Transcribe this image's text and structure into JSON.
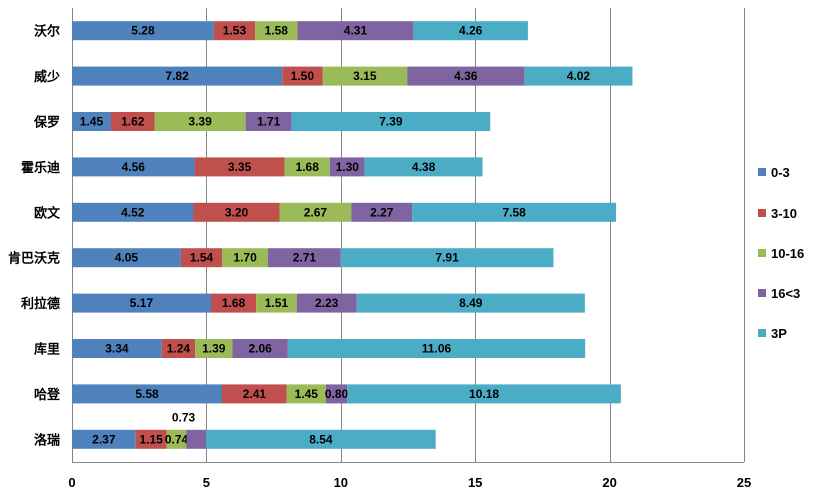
{
  "chart_data": {
    "type": "bar",
    "orientation": "horizontal",
    "stacked": true,
    "title": "",
    "xlabel": "",
    "ylabel": "",
    "xlim": [
      0,
      25
    ],
    "x_ticks": [
      0,
      5,
      10,
      15,
      20,
      25
    ],
    "grid": "vertical major gridlines",
    "legend_position": "right",
    "categories": [
      "沃尔",
      "威少",
      "保罗",
      "霍乐迪",
      "欧文",
      "肯巴沃克",
      "利拉德",
      "库里",
      "哈登",
      "洛瑞"
    ],
    "series": [
      {
        "name": "0-3",
        "color": "#4F81BD",
        "values": [
          5.28,
          7.82,
          1.45,
          4.56,
          4.52,
          4.05,
          5.17,
          3.34,
          5.58,
          2.37
        ]
      },
      {
        "name": "3-10",
        "color": "#C0504D",
        "values": [
          1.53,
          1.5,
          1.62,
          3.35,
          3.2,
          1.54,
          1.68,
          1.24,
          2.41,
          1.15
        ]
      },
      {
        "name": "10-16",
        "color": "#9BBB59",
        "values": [
          1.58,
          3.15,
          3.39,
          1.68,
          2.67,
          1.7,
          1.51,
          1.39,
          1.45,
          0.74
        ]
      },
      {
        "name": "16<3",
        "color": "#8064A2",
        "values": [
          4.31,
          4.36,
          1.71,
          1.3,
          2.27,
          2.71,
          2.23,
          2.06,
          0.8,
          0.73
        ]
      },
      {
        "name": "3P",
        "color": "#4BACC6",
        "values": [
          4.26,
          4.02,
          7.39,
          4.38,
          7.58,
          7.91,
          8.49,
          11.06,
          10.18,
          8.54
        ]
      }
    ],
    "data_labels": [
      [
        "5.28",
        "7.82",
        "1.45",
        "4.56",
        "4.52",
        "4.05",
        "5.17",
        "3.34",
        "5.58",
        "2.37"
      ],
      [
        "1.53",
        "1.50",
        "1.62",
        "3.35",
        "3.20",
        "1.54",
        "1.68",
        "1.24",
        "2.41",
        "1.15"
      ],
      [
        "1.58",
        "3.15",
        "3.39",
        "1.68",
        "2.67",
        "1.70",
        "1.51",
        "1.39",
        "1.45",
        "0.74"
      ],
      [
        "4.31",
        "4.36",
        "1.71",
        "1.30",
        "2.27",
        "2.71",
        "2.23",
        "2.06",
        "0.80",
        "0.73"
      ],
      [
        "4.26",
        "4.02",
        "7.39",
        "4.38",
        "7.58",
        "7.91",
        "8.49",
        "11.06",
        "10.18",
        "8.54"
      ]
    ],
    "tick_labels": [
      "0",
      "5",
      "10",
      "15",
      "20",
      "25"
    ]
  }
}
